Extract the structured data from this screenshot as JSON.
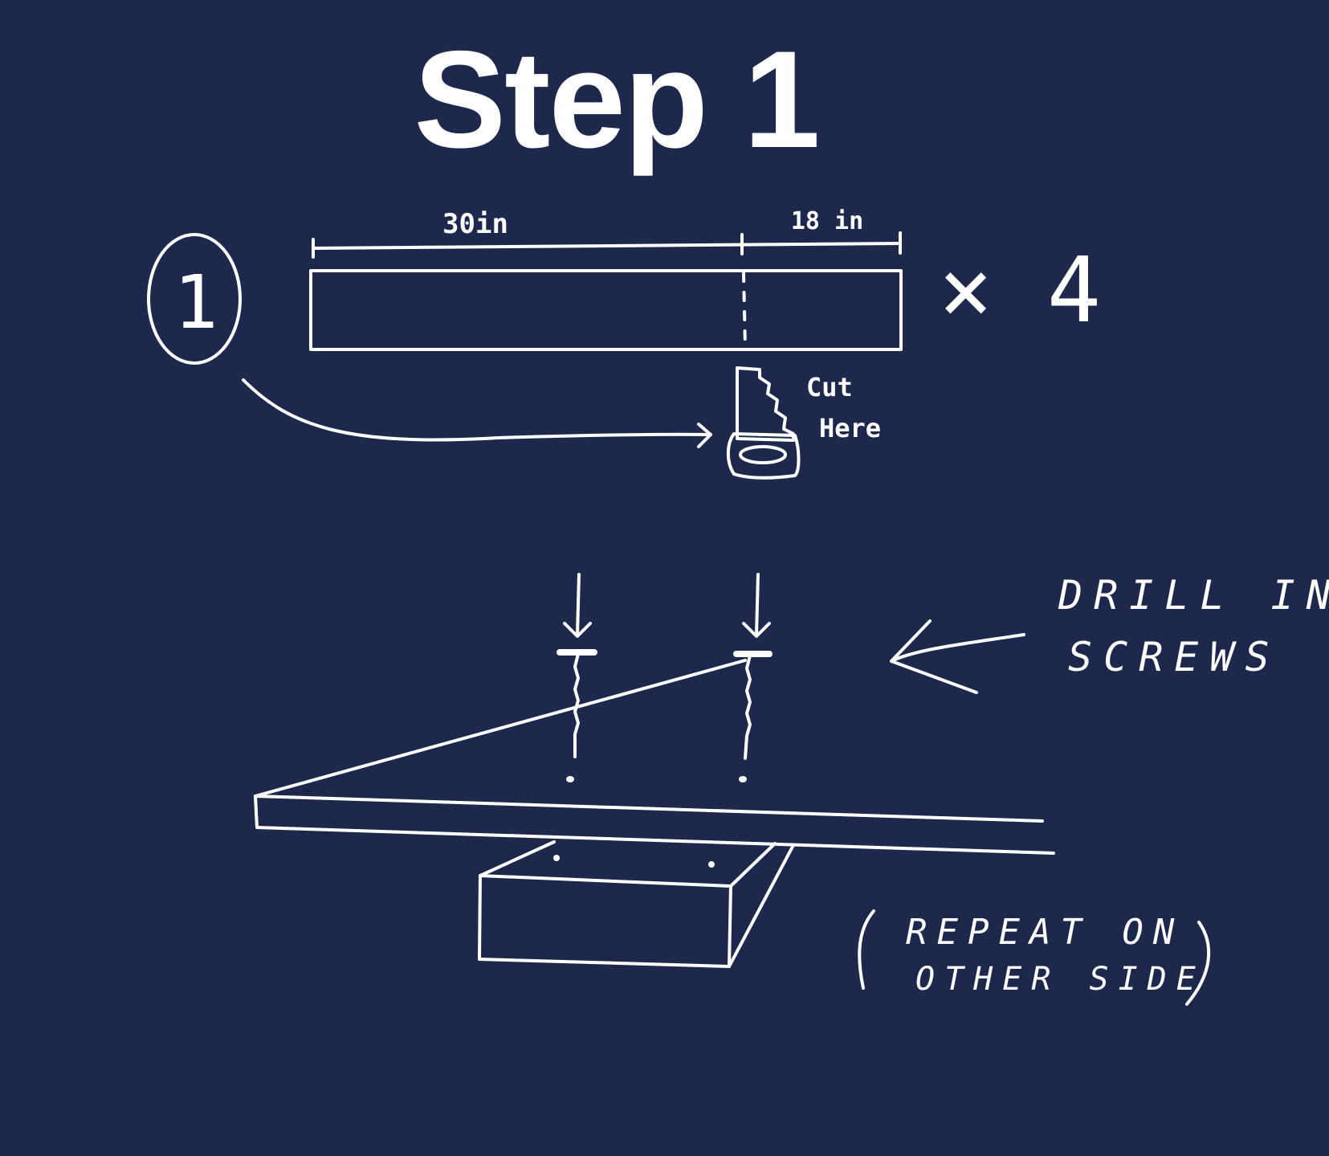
{
  "title": "Step 1",
  "cut_diagram": {
    "step_number": "1",
    "segment_left_label": "30in",
    "segment_right_label": "18 in",
    "quantity": "× 4",
    "saw_caption_line1": "Cut",
    "saw_caption_line2": "Here"
  },
  "assembly_diagram": {
    "drill_label_line1": "DRILL IN",
    "drill_label_line2": "SCREWS",
    "repeat_note_line1": "REPEAT ON",
    "repeat_note_line2": "OTHER SIDE"
  },
  "colors": {
    "background": "#1e284d",
    "ink": "#ffffff"
  }
}
